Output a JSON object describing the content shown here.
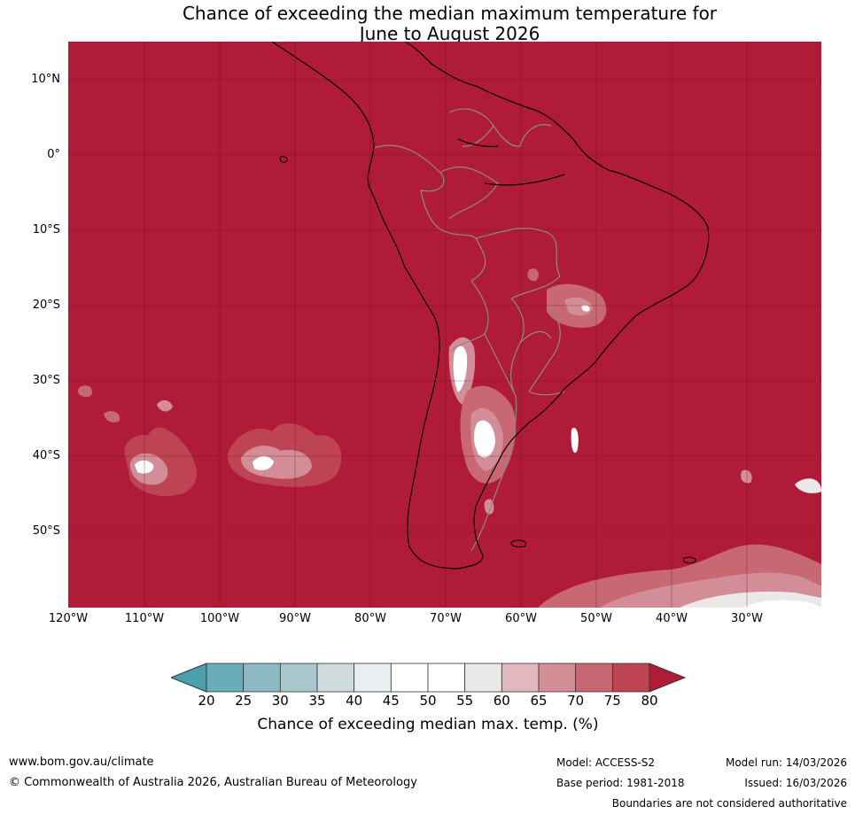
{
  "title": {
    "line1": "Chance of exceeding the median maximum temperature for",
    "line2": "June to August 2026"
  },
  "map": {
    "region": "South America",
    "background_color": "#b01c38",
    "lat_labels": [
      "10°N",
      "0°",
      "10°S",
      "20°S",
      "30°S",
      "40°S",
      "50°S"
    ],
    "lon_labels": [
      "120°W",
      "110°W",
      "100°W",
      "90°W",
      "80°W",
      "70°W",
      "60°W",
      "50°W",
      "40°W",
      "30°W"
    ]
  },
  "colorbar": {
    "ticks": [
      "20",
      "25",
      "30",
      "35",
      "40",
      "45",
      "50",
      "55",
      "60",
      "65",
      "70",
      "75",
      "80"
    ],
    "below_color": "#4a9fab",
    "above_color": "#b01c38",
    "bin_colors": [
      "#69adbb",
      "#8cb8c4",
      "#a9c7cc",
      "#cfdadc",
      "#eaf0f2",
      "#ffffff",
      "#ffffff",
      "#ebe8e8",
      "#e1b8be",
      "#d38d96",
      "#c76873",
      "#bf4453"
    ],
    "label": "Chance of exceeding median max. temp. (%)"
  },
  "footer": {
    "url": "www.bom.gov.au/climate",
    "copyright": "© Commonwealth of Australia 2026, Australian Bureau of Meteorology",
    "model": "Model: ACCESS-S2",
    "base_period": "Base period: 1981-2018",
    "model_run": "Model run: 14/03/2026",
    "issued": "Issued: 16/03/2026",
    "disclaimer": "Boundaries are not considered authoritative"
  }
}
